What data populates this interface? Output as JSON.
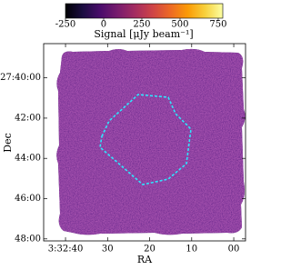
{
  "chart_data": {
    "type": "image",
    "colormap": "inferno",
    "colorbar": {
      "label": "Signal [μJy beam⁻¹]",
      "lim": [
        -250,
        780
      ],
      "ticks": [
        -250,
        0,
        250,
        500,
        750
      ]
    },
    "xlabel": "RA",
    "ylabel": "Dec",
    "xlim": [
      45.2,
      -2.8
    ],
    "xticks": [
      {
        "value": 40,
        "label": "3:32:40"
      },
      30,
      20,
      10,
      {
        "value": 0,
        "label": "00"
      }
    ],
    "ylim": [
      48.1,
      38.3
    ],
    "yticks": [
      {
        "value": 40,
        "label": "-27:40:00"
      },
      {
        "value": 42,
        "label": "42:00"
      },
      {
        "value": 44,
        "label": "44:00"
      },
      {
        "value": 46,
        "label": "46:00"
      },
      {
        "value": 48,
        "label": "48:00"
      }
    ]
  }
}
